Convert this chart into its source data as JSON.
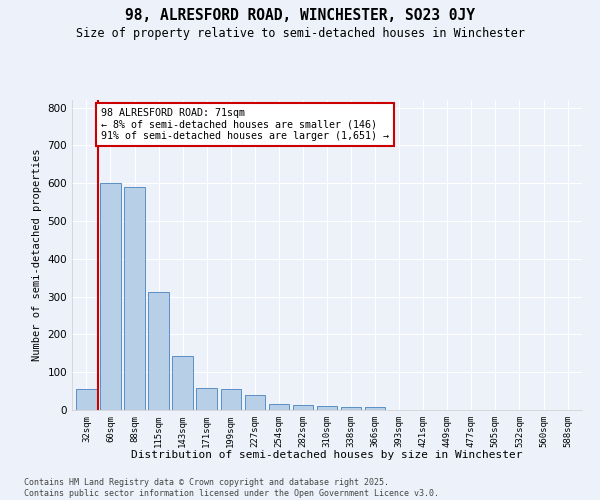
{
  "title": "98, ALRESFORD ROAD, WINCHESTER, SO23 0JY",
  "subtitle": "Size of property relative to semi-detached houses in Winchester",
  "xlabel": "Distribution of semi-detached houses by size in Winchester",
  "ylabel": "Number of semi-detached properties",
  "categories": [
    "32sqm",
    "60sqm",
    "88sqm",
    "115sqm",
    "143sqm",
    "171sqm",
    "199sqm",
    "227sqm",
    "254sqm",
    "282sqm",
    "310sqm",
    "338sqm",
    "366sqm",
    "393sqm",
    "421sqm",
    "449sqm",
    "477sqm",
    "505sqm",
    "532sqm",
    "560sqm",
    "588sqm"
  ],
  "bar_values": [
    55,
    600,
    590,
    312,
    143,
    57,
    56,
    40,
    17,
    13,
    10,
    8,
    7,
    0,
    0,
    0,
    0,
    0,
    0,
    0,
    0
  ],
  "bar_color": "#b8cfe8",
  "bar_edge_color": "#5a8fc4",
  "vline_color": "#cc0000",
  "annotation_text": "98 ALRESFORD ROAD: 71sqm\n← 8% of semi-detached houses are smaller (146)\n91% of semi-detached houses are larger (1,651) →",
  "annotation_box_color": "#ffffff",
  "annotation_box_edge": "#cc0000",
  "ylim": [
    0,
    820
  ],
  "yticks": [
    0,
    100,
    200,
    300,
    400,
    500,
    600,
    700,
    800
  ],
  "background_color": "#edf2fa",
  "grid_color": "#ffffff",
  "footer": "Contains HM Land Registry data © Crown copyright and database right 2025.\nContains public sector information licensed under the Open Government Licence v3.0."
}
